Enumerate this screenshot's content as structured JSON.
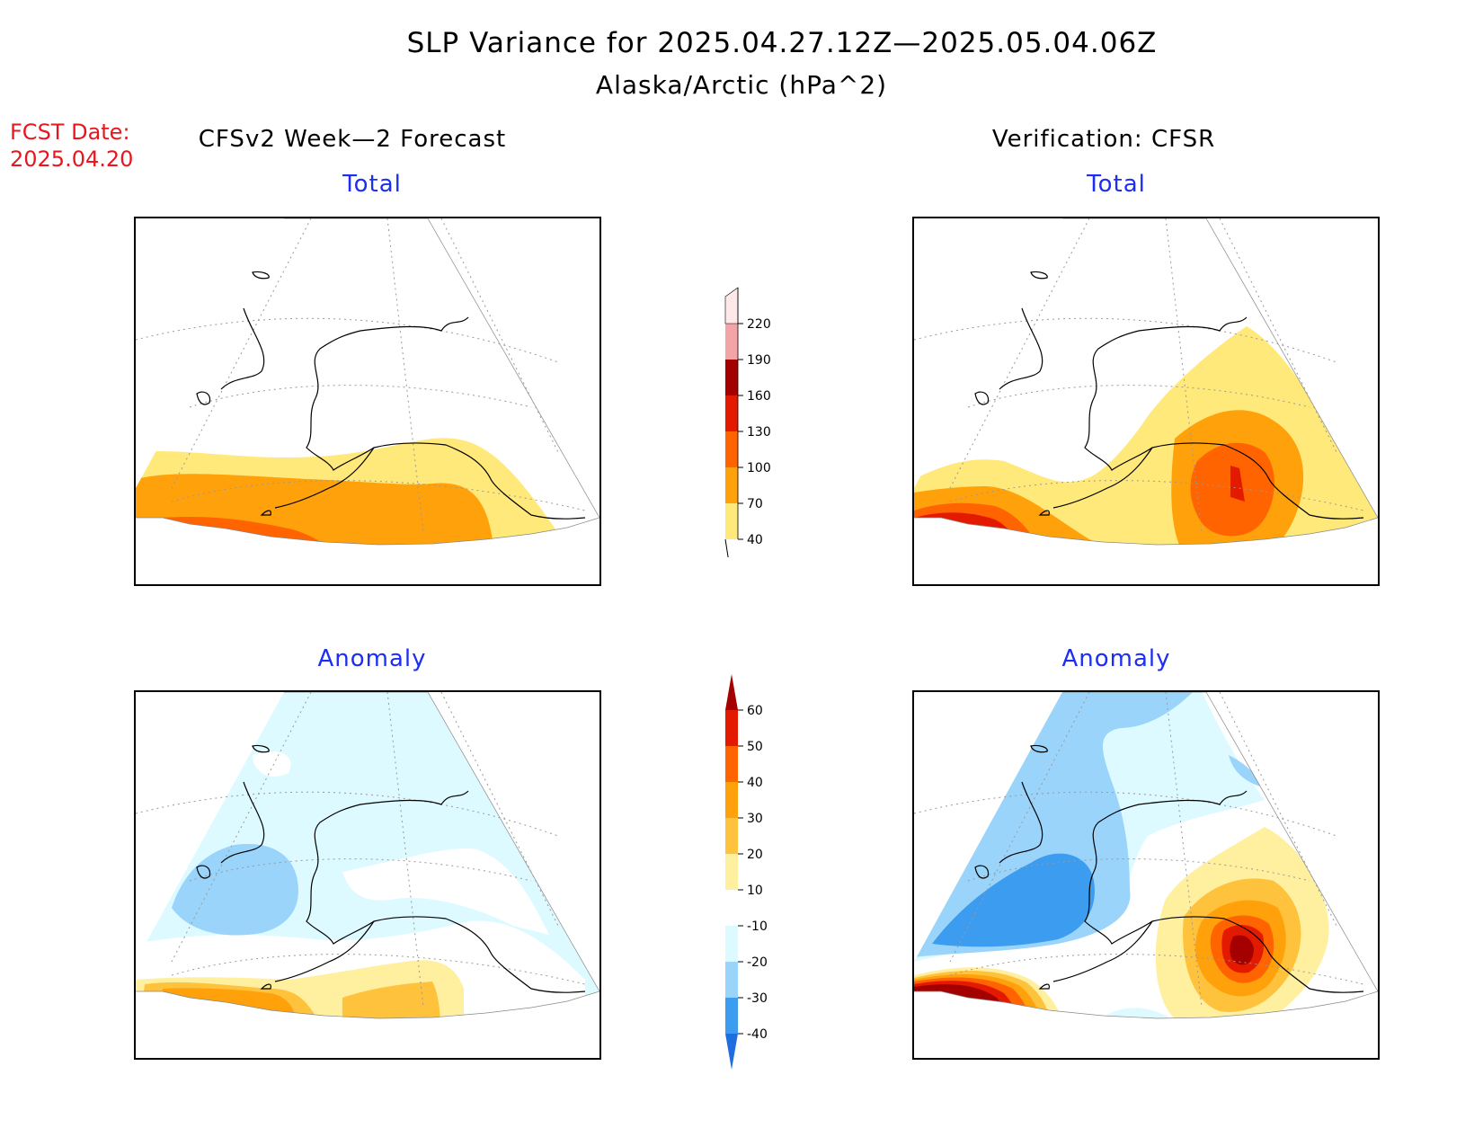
{
  "title": {
    "line1": "SLP Variance for 2025.04.27.12Z—2025.05.04.06Z",
    "line2": "Alaska/Arctic (hPa^2)"
  },
  "forecast_date": {
    "label": "FCST Date:",
    "value": "2025.04.20"
  },
  "columns": {
    "left": "CFSv2 Week—2 Forecast",
    "right": "Verification: CFSR"
  },
  "panels": {
    "forecast_total": "Total",
    "forecast_anomaly": "Anomaly",
    "verification_total": "Total",
    "verification_anomaly": "Anomaly"
  },
  "colorbars": {
    "total": {
      "levels": [
        "40",
        "70",
        "100",
        "130",
        "160",
        "190",
        "220"
      ],
      "colors": [
        "#ffe97a",
        "#ffa10a",
        "#ff6400",
        "#e31a00",
        "#a50000",
        "#f3a4a6",
        "#ffe8e8"
      ]
    },
    "anomaly": {
      "levels": [
        "60",
        "50",
        "40",
        "30",
        "20",
        "10",
        "-10",
        "-20",
        "-30",
        "-40"
      ],
      "colors_top_to_bottom": [
        "#a50000",
        "#e31a00",
        "#ff6400",
        "#ffa10a",
        "#ffc23c",
        "#fff0a0",
        "#ffffff",
        "#dcfaff",
        "#9ad4fa",
        "#3c9cf0",
        "#1f6ee0"
      ]
    }
  }
}
